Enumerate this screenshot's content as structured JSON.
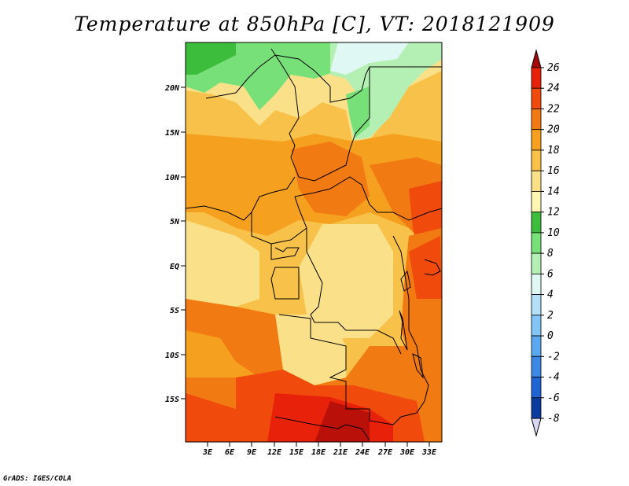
{
  "title": "Temperature at 850hPa [C], VT: 2018121909",
  "credit": "GrADS: IGES/COLA",
  "lat_labels": [
    "20N",
    "15N",
    "10N",
    "5N",
    "EQ",
    "5S",
    "10S",
    "15S"
  ],
  "lon_labels": [
    "3E",
    "6E",
    "9E",
    "12E",
    "15E",
    "18E",
    "21E",
    "24E",
    "27E",
    "30E",
    "33E"
  ],
  "colorbar": {
    "levels": [
      "26",
      "24",
      "22",
      "20",
      "18",
      "16",
      "14",
      "12",
      "10",
      "8",
      "6",
      "4",
      "2",
      "0",
      "-2",
      "-4",
      "-6",
      "-8"
    ],
    "colors": [
      "#a50a0a",
      "#e8220a",
      "#f04a0c",
      "#f27a12",
      "#f5a01e",
      "#f8c24a",
      "#fbe08a",
      "#fff6b4",
      "#3cbe3c",
      "#78e078",
      "#b4f0b4",
      "#e0f8f4",
      "#b4e0f8",
      "#82c4f4",
      "#5aa8ee",
      "#3c88e6",
      "#1e64d2",
      "#0a3ca0",
      "#0a1e78",
      "#d8d8f0"
    ]
  }
}
